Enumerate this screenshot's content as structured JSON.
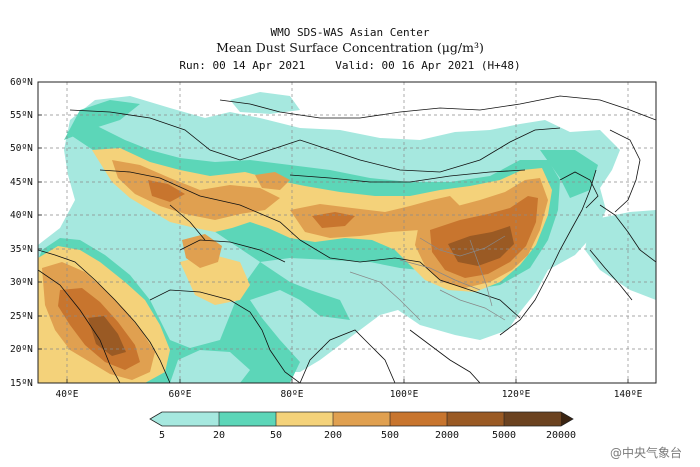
{
  "header": {
    "line1": "WMO SDS-WAS Asian Center",
    "line2": "Mean Dust Surface Concentration (μg/m³)",
    "run": "Run: 00 14 Apr 2021",
    "valid": "Valid: 00 16 Apr 2021 (H+48)"
  },
  "map": {
    "lat_labels": [
      "60ºN",
      "55ºN",
      "50ºN",
      "45ºN",
      "40ºN",
      "35ºN",
      "30ºN",
      "25ºN",
      "20ºN",
      "15ºN"
    ],
    "lon_labels": [
      "40ºE",
      "60ºE",
      "80ºE",
      "100ºE",
      "120ºE",
      "140ºE"
    ],
    "extent": {
      "lon_min": 35,
      "lon_max": 150,
      "lat_min": 15,
      "lat_max": 60
    },
    "grid": true
  },
  "legend": {
    "levels": [
      "5",
      "20",
      "50",
      "200",
      "500",
      "2000",
      "5000",
      "20000"
    ],
    "colors": [
      "#a6e8df",
      "#5cd6b8",
      "#f4d27a",
      "#e0a050",
      "#c8752e",
      "#9a5a24",
      "#6b4220",
      "#3b2412"
    ]
  },
  "watermark": "@中央气象台"
}
